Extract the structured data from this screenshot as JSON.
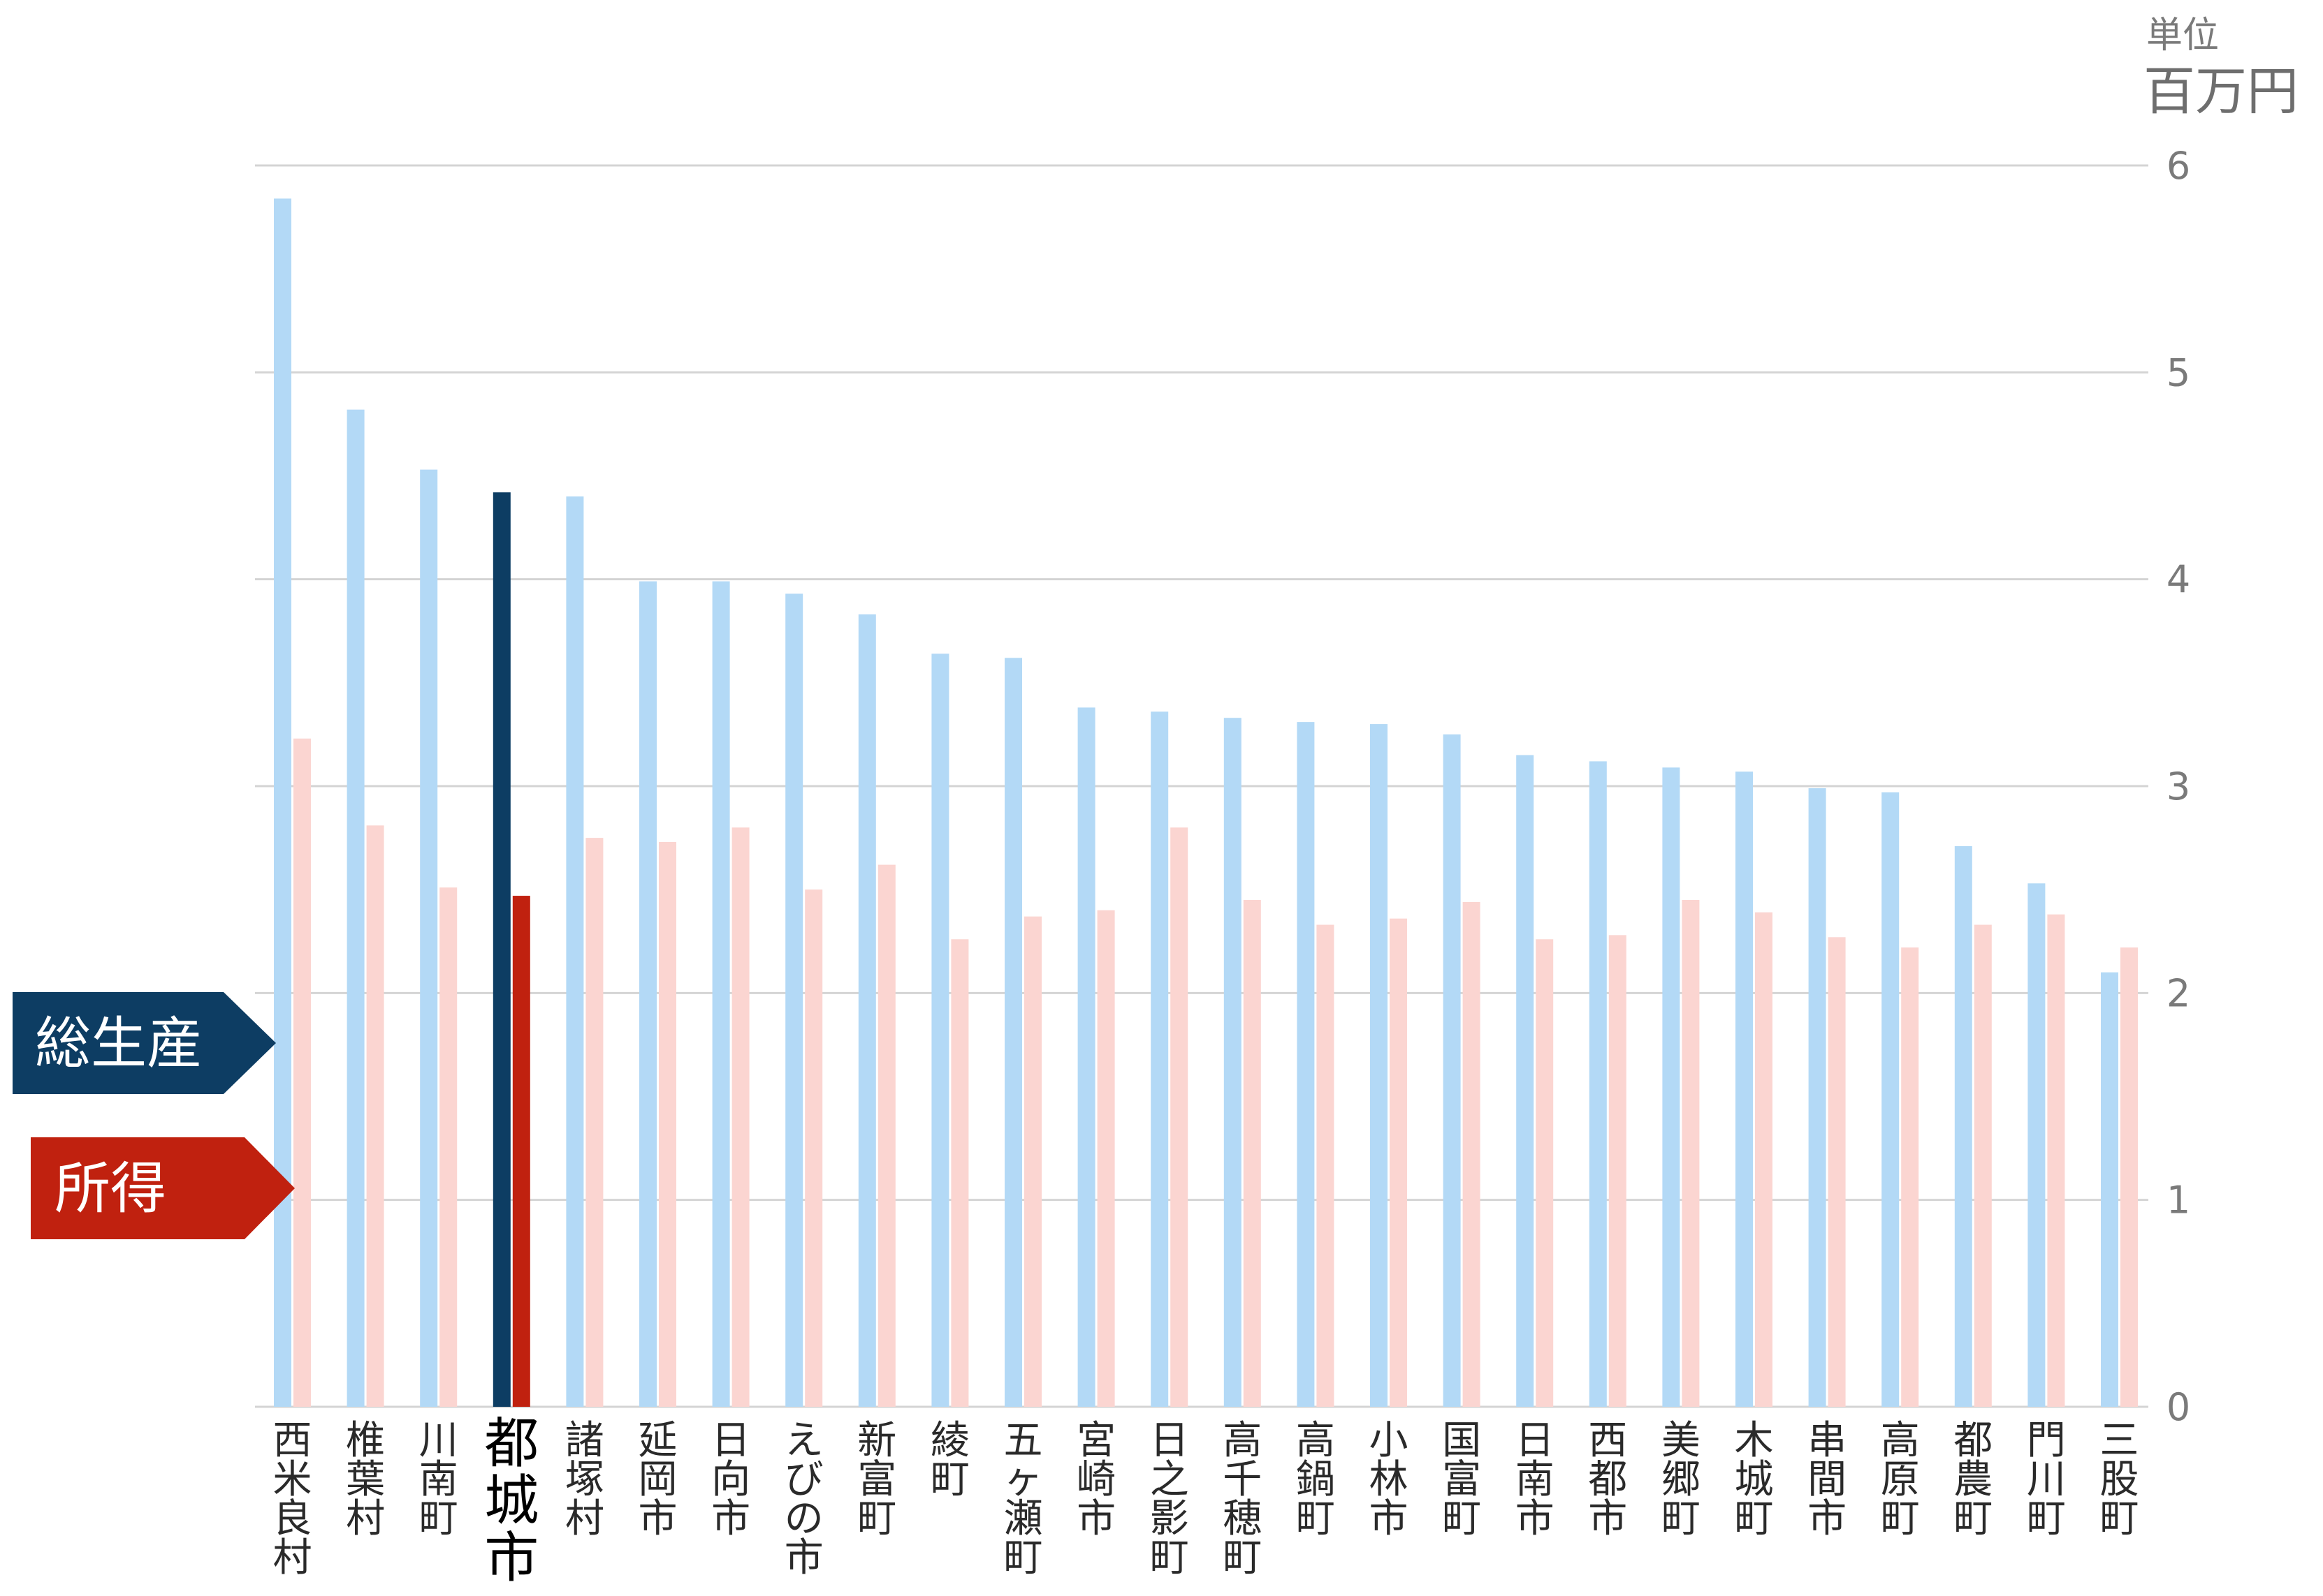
{
  "unit": {
    "line1": "単位",
    "line2": "百万円"
  },
  "legend": [
    {
      "label": "総生産",
      "color": "#0d3d63"
    },
    {
      "label": "所得",
      "color": "#c0210f"
    }
  ],
  "colors": {
    "production": "#b3d9f6",
    "income": "#fbd5d1",
    "production_highlight": "#0d3d63",
    "income_highlight": "#c0210f",
    "grid": "#d4d4d4"
  },
  "chart_data": {
    "type": "bar",
    "ylim": [
      0,
      6
    ],
    "yticks": [
      "0",
      "1",
      "2",
      "3",
      "4",
      "5",
      "6"
    ],
    "grid": true,
    "legend_position": "left",
    "highlight": "都城市",
    "categories": [
      "西米良村",
      "椎葉村",
      "川南町",
      "都城市",
      "諸塚村",
      "延岡市",
      "日向市",
      "えびの市",
      "新富町",
      "綾町",
      "五ヶ瀬町",
      "宮崎市",
      "日之影町",
      "高千穂町",
      "高鍋町",
      "小林市",
      "国富町",
      "日南市",
      "西都市",
      "美郷町",
      "木城町",
      "串間市",
      "高原町",
      "都農町",
      "門川町",
      "三股町"
    ],
    "series": [
      {
        "name": "総生産",
        "values": [
          5.84,
          4.82,
          4.53,
          4.42,
          4.4,
          3.99,
          3.99,
          3.93,
          3.83,
          3.64,
          3.62,
          3.38,
          3.36,
          3.33,
          3.31,
          3.3,
          3.25,
          3.15,
          3.12,
          3.09,
          3.07,
          2.99,
          2.97,
          2.71,
          2.53,
          2.1
        ]
      },
      {
        "name": "所得",
        "values": [
          3.23,
          2.81,
          2.51,
          2.47,
          2.75,
          2.73,
          2.8,
          2.5,
          2.62,
          2.26,
          2.37,
          2.4,
          2.8,
          2.45,
          2.33,
          2.36,
          2.44,
          2.26,
          2.28,
          2.45,
          2.39,
          2.27,
          2.22,
          2.33,
          2.38,
          2.22
        ]
      }
    ]
  }
}
